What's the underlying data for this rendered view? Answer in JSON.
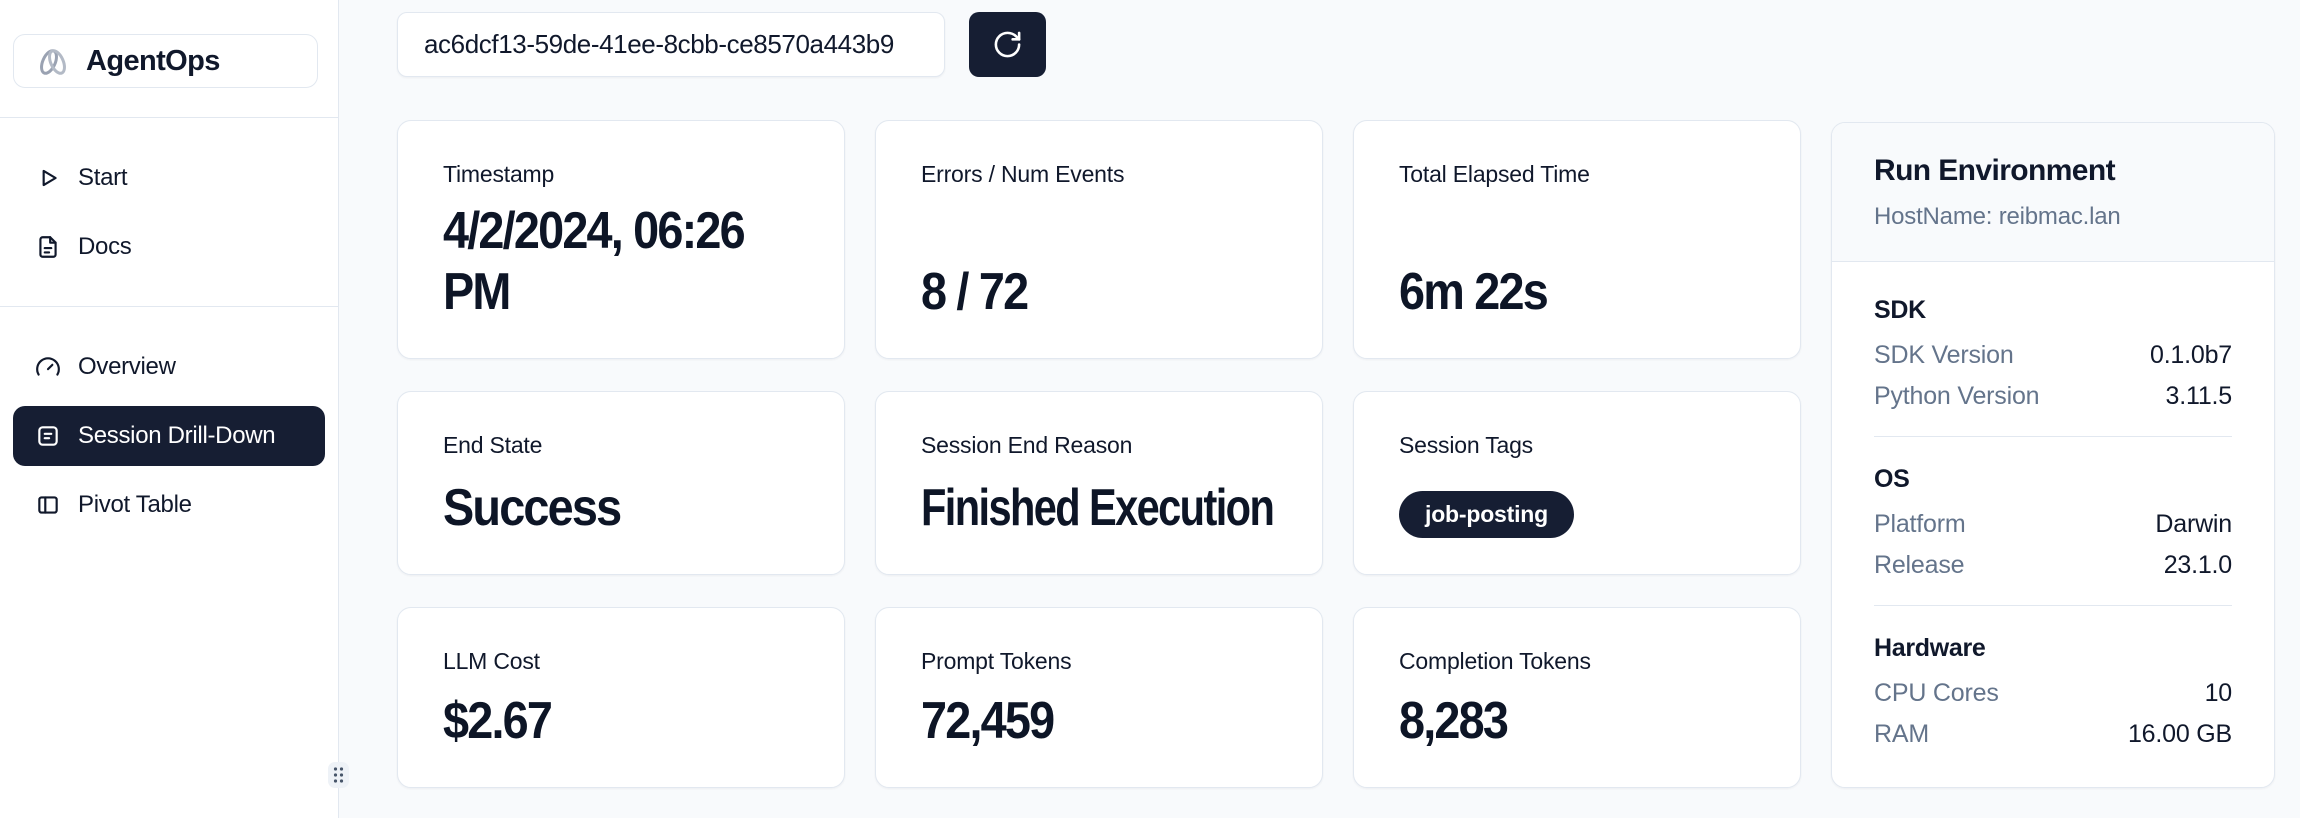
{
  "colors": {
    "accent_dark_navy": "#161e33",
    "page_background": "#f8fafc",
    "card_border": "#e2e8f0",
    "muted_text": "#64748b",
    "dark_text": "#0f172a",
    "logo_gray": "#9aa2b2"
  },
  "sidebar": {
    "logo_label": "AgentOps",
    "groups": [
      {
        "items": [
          {
            "icon": "play",
            "label": "Start",
            "active": false
          },
          {
            "icon": "docs",
            "label": "Docs",
            "active": false
          }
        ]
      },
      {
        "items": [
          {
            "icon": "gauge",
            "label": "Overview",
            "active": false
          },
          {
            "icon": "session-drilldown",
            "label": "Session Drill-Down",
            "active": true
          },
          {
            "icon": "pivot-table",
            "label": "Pivot Table",
            "active": false
          }
        ]
      }
    ]
  },
  "toolbar": {
    "session_id": "ac6dcf13-59de-41ee-8cbb-ce8570a443b9"
  },
  "metrics": [
    {
      "label": "Timestamp",
      "value": "4/2/2024, 06:26\nPM"
    },
    {
      "label": "Errors / Num Events",
      "value": "8 / 72"
    },
    {
      "label": "Total Elapsed Time",
      "value": "6m 22s"
    },
    {
      "label": "End State",
      "value": "Success"
    },
    {
      "label": "Session End Reason",
      "value": "Finished Execution"
    },
    {
      "label": "Session Tags",
      "tags": [
        "job-posting"
      ]
    },
    {
      "label": "LLM Cost",
      "value": "$2.67"
    },
    {
      "label": "Prompt Tokens",
      "value": "72,459"
    },
    {
      "label": "Completion Tokens",
      "value": "8,283"
    }
  ],
  "environment": {
    "title": "Run Environment",
    "hostname": "HostName: reibmac.lan",
    "sections": [
      {
        "heading": "SDK",
        "rows": [
          {
            "label": "SDK Version",
            "value": "0.1.0b7"
          },
          {
            "label": "Python Version",
            "value": "3.11.5"
          }
        ]
      },
      {
        "heading": "OS",
        "rows": [
          {
            "label": "Platform",
            "value": "Darwin"
          },
          {
            "label": "Release",
            "value": "23.1.0"
          }
        ]
      },
      {
        "heading": "Hardware",
        "rows": [
          {
            "label": "CPU Cores",
            "value": "10"
          },
          {
            "label": "RAM",
            "value": "16.00 GB"
          }
        ]
      }
    ]
  }
}
